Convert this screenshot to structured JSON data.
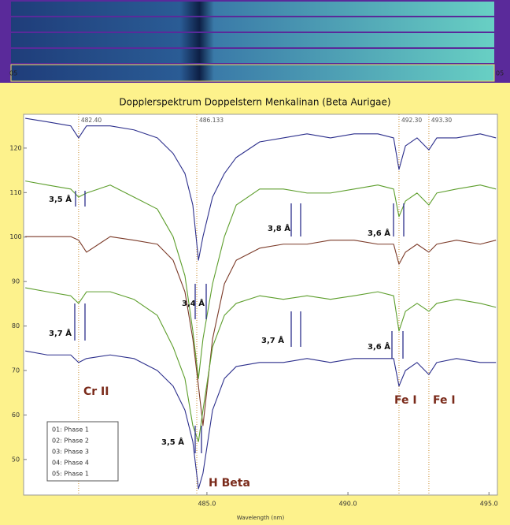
{
  "chart_data": {
    "type": "line",
    "title": "Dopplerspektrum Doppelstern Menkalinan (Beta Aurigae)",
    "x_label": "Wavelength (nm)",
    "strip_labels": [
      "05",
      "05"
    ],
    "xlim": [
      478.5,
      495.3
    ],
    "ylim": [
      42,
      127.6
    ],
    "xticks": [
      {
        "value": 485,
        "label": "485.0"
      },
      {
        "value": 490,
        "label": "490.0"
      },
      {
        "value": 495,
        "label": "495.0"
      }
    ],
    "yticks": [
      50,
      60,
      70,
      80,
      90,
      100,
      110,
      120
    ],
    "grid": false,
    "legend": "lower left",
    "markers": [
      {
        "x": 480.45,
        "label": "482.40"
      },
      {
        "x": 484.64,
        "label": "486.133"
      },
      {
        "x": 491.81,
        "label": "492.30"
      },
      {
        "x": 492.87,
        "label": "493.30"
      }
    ],
    "annotations": [
      "3,5 Å",
      "3,8 Å",
      "3,6 Å",
      "3,4 Å",
      "3,7 Å",
      "3,7 Å",
      "3,6 Å",
      "3,5 Å",
      "Cr II",
      "H Beta",
      "Fe I",
      "Fe I"
    ],
    "x": [
      478.56,
      479.34,
      480.17,
      480.45,
      480.73,
      481.57,
      482.41,
      483.24,
      483.8,
      484.22,
      484.5,
      484.7,
      484.86,
      485.2,
      485.62,
      486.04,
      486.87,
      487.71,
      488.55,
      489.38,
      490.22,
      491.06,
      491.62,
      491.81,
      492.04,
      492.45,
      492.87,
      493.15,
      493.85,
      494.69,
      495.25
    ],
    "series": [
      {
        "name": "01: Phase 1",
        "color": "#2c2f8c",
        "values": [
          126.7,
          125.9,
          125.0,
          122.3,
          125.0,
          125.0,
          124.1,
          122.3,
          118.8,
          114.3,
          107.2,
          94.8,
          100.1,
          109.0,
          114.3,
          117.9,
          121.4,
          122.3,
          123.2,
          122.3,
          123.2,
          123.2,
          122.3,
          115.2,
          120.5,
          122.3,
          119.6,
          122.3,
          122.3,
          123.2,
          122.3
        ]
      },
      {
        "name": "02: Phase 2",
        "color": "#5d9e2c",
        "values": [
          112.6,
          111.7,
          110.8,
          109.0,
          109.9,
          111.7,
          109.0,
          106.3,
          100.1,
          91.3,
          78.9,
          68.2,
          77.1,
          89.5,
          100.1,
          107.2,
          110.8,
          110.8,
          109.9,
          109.9,
          110.8,
          111.7,
          110.8,
          104.6,
          108.1,
          109.9,
          107.2,
          109.9,
          110.8,
          111.7,
          110.8
        ]
      },
      {
        "name": "03: Phase 3",
        "color": "#7b3a28",
        "values": [
          100.1,
          100.1,
          100.1,
          99.3,
          96.6,
          100.1,
          99.3,
          98.4,
          94.8,
          87.7,
          77.1,
          66.5,
          57.6,
          77.1,
          89.5,
          94.8,
          97.5,
          98.4,
          98.4,
          99.3,
          99.3,
          98.4,
          98.4,
          93.9,
          96.6,
          98.4,
          96.6,
          98.4,
          99.3,
          98.4,
          99.3
        ]
      },
      {
        "name": "04: Phase 4",
        "color": "#5d9e2c",
        "values": [
          88.6,
          87.7,
          86.8,
          85.1,
          87.7,
          87.7,
          86.0,
          82.4,
          75.3,
          68.2,
          57.6,
          54.0,
          61.1,
          75.3,
          82.4,
          85.1,
          86.8,
          86.0,
          86.8,
          86.0,
          86.8,
          87.7,
          86.8,
          78.9,
          83.3,
          85.1,
          83.3,
          85.1,
          86.0,
          85.1,
          84.2
        ]
      },
      {
        "name": "05: Phase 1",
        "color": "#2c2f8c",
        "values": [
          74.4,
          73.5,
          73.5,
          71.8,
          72.7,
          73.5,
          72.7,
          70.0,
          66.5,
          61.1,
          54.0,
          43.4,
          46.9,
          61.1,
          68.2,
          70.9,
          71.8,
          71.8,
          72.7,
          71.8,
          72.7,
          72.7,
          72.7,
          66.5,
          70.0,
          71.8,
          69.1,
          71.8,
          72.7,
          71.8,
          71.8
        ]
      }
    ]
  }
}
